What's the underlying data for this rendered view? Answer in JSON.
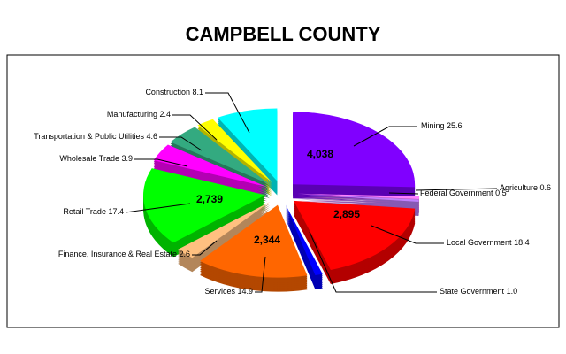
{
  "chart_data": {
    "type": "pie",
    "title": "CAMPBELL COUNTY",
    "categories": [
      "Mining",
      "Agriculture",
      "Federal Government",
      "Local Government",
      "State Government",
      "Services",
      "Finance, Insurance & Real Estate",
      "Retail Trade",
      "Wholesale Trade",
      "Transportation & Public Utilities",
      "Manufacturing",
      "Construction"
    ],
    "values": [
      25.6,
      0.6,
      0.5,
      18.4,
      1.0,
      14.9,
      2.6,
      17.4,
      3.9,
      4.6,
      2.4,
      8.1
    ],
    "value_labels": [
      "25.6",
      "0.6",
      "0.5",
      "18.4",
      "1.0",
      "14.9",
      "2.6",
      "17.4",
      "3.9",
      "4.6",
      "2.4",
      "8.1"
    ],
    "inner_labels": [
      "4,038",
      null,
      null,
      "2,895",
      null,
      "2,344",
      null,
      "2,739",
      null,
      null,
      null,
      null
    ],
    "colors": [
      "#8000ff",
      "#ff80ff",
      "#c080ff",
      "#ff0000",
      "#0000ff",
      "#ff6600",
      "#ffc080",
      "#00ff00",
      "#ff00ff",
      "#33aa80",
      "#ffff00",
      "#00ffff"
    ]
  }
}
